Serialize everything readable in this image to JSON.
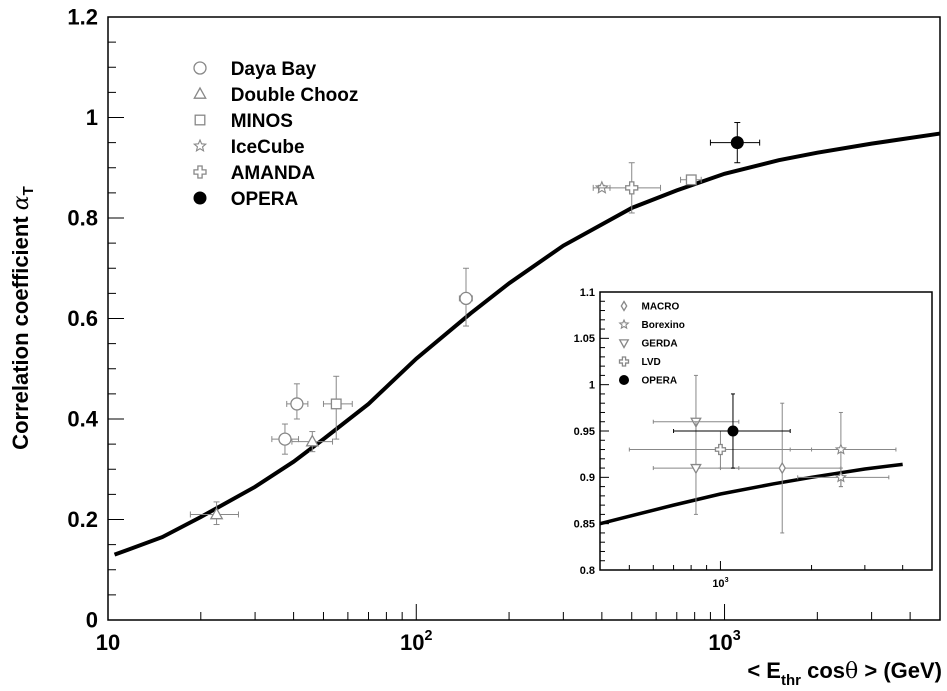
{
  "chart_data": [
    {
      "type": "scatter",
      "xscale": "log",
      "xlim": [
        10,
        5000
      ],
      "ylim": [
        0,
        1.2
      ],
      "xlabel": "< E_thr cosθ > (GeV)",
      "ylabel": "Correlation coefficient α_T",
      "y_ticks": [
        "0",
        "0.2",
        "0.4",
        "0.6",
        "0.8",
        "1",
        "1.2"
      ],
      "x_ticks": [
        "10",
        "10^2",
        "10^3"
      ],
      "grid": false,
      "legend_position": "top-left",
      "series": [
        {
          "name": "Daya Bay",
          "marker": "open-circle",
          "color": "#888888",
          "points": [
            {
              "x": 37.5,
              "y": 0.36,
              "xerr": [
                34,
                41.5
              ],
              "yerr": [
                0.33,
                0.39
              ]
            },
            {
              "x": 41,
              "y": 0.43,
              "xerr": [
                38,
                44.5
              ],
              "yerr": [
                0.4,
                0.47
              ]
            },
            {
              "x": 145,
              "y": 0.64,
              "xerr": [
                138,
                152
              ],
              "yerr": [
                0.585,
                0.7
              ]
            }
          ]
        },
        {
          "name": "Double Chooz",
          "marker": "open-triangle",
          "color": "#888888",
          "points": [
            {
              "x": 22.5,
              "y": 0.21,
              "xerr": [
                18.5,
                26.5
              ],
              "yerr": [
                0.19,
                0.235
              ]
            },
            {
              "x": 46,
              "y": 0.355,
              "xerr": [
                39.5,
                53.5
              ],
              "yerr": [
                0.335,
                0.375
              ]
            }
          ]
        },
        {
          "name": "MINOS",
          "marker": "open-square",
          "color": "#888888",
          "points": [
            {
              "x": 55,
              "y": 0.43,
              "xerr": [
                50,
                62
              ],
              "yerr": [
                0.36,
                0.485
              ]
            },
            {
              "x": 780,
              "y": 0.876,
              "xerr": [
                720,
                840
              ],
              "yerr": [
                0.87,
                0.882
              ]
            }
          ]
        },
        {
          "name": "IceCube",
          "marker": "star",
          "color": "#888888",
          "points": [
            {
              "x": 400,
              "y": 0.86,
              "xerr": [
                375,
                425
              ],
              "yerr": [
                0.855,
                0.865
              ]
            }
          ]
        },
        {
          "name": "AMANDA",
          "marker": "open-cross",
          "color": "#888888",
          "points": [
            {
              "x": 500,
              "y": 0.86,
              "xerr": [
                390,
                620
              ],
              "yerr": [
                0.81,
                0.91
              ]
            }
          ]
        },
        {
          "name": "OPERA",
          "marker": "filled-circle",
          "color": "#000000",
          "points": [
            {
              "x": 1100,
              "y": 0.95,
              "xerr": [
                900,
                1300
              ],
              "yerr": [
                0.91,
                0.99
              ]
            }
          ]
        }
      ],
      "fit_curve": {
        "x": [
          10.5,
          15,
          20,
          30,
          40,
          50,
          70,
          100,
          150,
          200,
          300,
          500,
          700,
          1000,
          1500,
          2000,
          3000,
          5000
        ],
        "y": [
          0.13,
          0.165,
          0.205,
          0.265,
          0.315,
          0.36,
          0.43,
          0.52,
          0.61,
          0.67,
          0.745,
          0.82,
          0.855,
          0.888,
          0.915,
          0.93,
          0.948,
          0.968
        ]
      }
    },
    {
      "type": "scatter",
      "xscale": "log",
      "xlim": [
        400,
        5000
      ],
      "ylim": [
        0.8,
        1.1
      ],
      "y_ticks": [
        "0.8",
        "0.85",
        "0.9",
        "0.95",
        "1",
        "1.05",
        "1.1"
      ],
      "x_ticks": [
        "10^3"
      ],
      "legend_position": "top-left",
      "series": [
        {
          "name": "MACRO",
          "marker": "open-diamond",
          "color": "#888888",
          "points": [
            {
              "x": 1600,
              "y": 0.91,
              "xerr": [
                1000,
                2500
              ],
              "yerr": [
                0.84,
                0.98
              ]
            }
          ]
        },
        {
          "name": "Borexino",
          "marker": "star",
          "color": "#888888",
          "points": [
            {
              "x": 2500,
              "y": 0.93,
              "xerr": [
                1700,
                3800
              ],
              "yerr": [
                0.89,
                0.97
              ]
            },
            {
              "x": 2500,
              "y": 0.9,
              "xerr": [
                1800,
                3600
              ],
              "yerr": [
                0.89,
                0.91
              ]
            }
          ]
        },
        {
          "name": "GERDA",
          "marker": "open-triangle-down",
          "color": "#888888",
          "points": [
            {
              "x": 830,
              "y": 0.96,
              "xerr": [
                600,
                1150
              ],
              "yerr": [
                0.91,
                1.01
              ]
            },
            {
              "x": 830,
              "y": 0.91,
              "xerr": [
                600,
                1150
              ],
              "yerr": [
                0.86,
                0.96
              ]
            }
          ]
        },
        {
          "name": "LVD",
          "marker": "open-cross",
          "color": "#888888",
          "points": [
            {
              "x": 1000,
              "y": 0.93,
              "xerr": [
                500,
                2000
              ],
              "yerr": [
                0.91,
                0.95
              ]
            }
          ]
        },
        {
          "name": "OPERA",
          "marker": "filled-circle",
          "color": "#000000",
          "points": [
            {
              "x": 1100,
              "y": 0.95,
              "xerr": [
                700,
                1700
              ],
              "yerr": [
                0.91,
                0.99
              ]
            }
          ]
        }
      ],
      "fit_curve": {
        "x": [
          400,
          700,
          1000,
          1500,
          2000,
          3000,
          4000
        ],
        "y": [
          0.85,
          0.87,
          0.882,
          0.893,
          0.9,
          0.909,
          0.914
        ]
      }
    }
  ]
}
